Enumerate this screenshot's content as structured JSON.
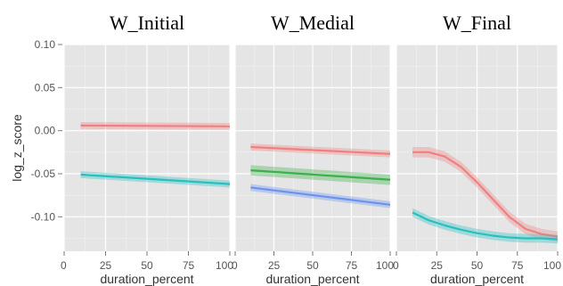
{
  "chart_data": {
    "type": "line",
    "ylabel": "log_z_score",
    "xlabel": "duration_percent",
    "xlim": [
      0,
      100
    ],
    "ylim": [
      -0.14,
      0.1
    ],
    "y_ticks": [
      {
        "value": 0.1,
        "label": "0.10"
      },
      {
        "value": 0.05,
        "label": "0.05"
      },
      {
        "value": 0.0,
        "label": "0.00"
      },
      {
        "value": -0.05,
        "label": "-0.05"
      },
      {
        "value": -0.1,
        "label": "-0.10"
      }
    ],
    "x_tick_labels": [
      [
        "0",
        "25",
        "50",
        "75",
        "100"
      ],
      [
        "0",
        "25",
        "50",
        "75",
        "100"
      ],
      [
        "0",
        "25",
        "50",
        "75",
        "100"
      ]
    ],
    "grid": true,
    "colors": {
      "red": "#f08080",
      "green": "#3cb04a",
      "blue": "#6a93f0",
      "teal": "#28bfc1",
      "panel_bg": "#e5e5e5",
      "grid": "#ffffff"
    },
    "panels": [
      {
        "title": "W_Initial",
        "series": [
          {
            "color": "red",
            "x": [
              10,
              100
            ],
            "y": [
              0.006,
              0.005
            ],
            "band": 0.004
          },
          {
            "color": "teal",
            "x": [
              10,
              100
            ],
            "y": [
              -0.051,
              -0.062
            ],
            "band": 0.004
          }
        ]
      },
      {
        "title": "W_Medial",
        "series": [
          {
            "color": "red",
            "x": [
              10,
              100
            ],
            "y": [
              -0.019,
              -0.027
            ],
            "band": 0.004
          },
          {
            "color": "green",
            "x": [
              10,
              100
            ],
            "y": [
              -0.046,
              -0.057
            ],
            "band": 0.006
          },
          {
            "color": "blue",
            "x": [
              10,
              100
            ],
            "y": [
              -0.066,
              -0.086
            ],
            "band": 0.004
          }
        ]
      },
      {
        "title": "W_Final",
        "series": [
          {
            "color": "red",
            "x": [
              10,
              20,
              30,
              40,
              50,
              60,
              70,
              80,
              90,
              100
            ],
            "y": [
              -0.025,
              -0.025,
              -0.03,
              -0.042,
              -0.06,
              -0.08,
              -0.1,
              -0.114,
              -0.12,
              -0.123
            ],
            "band": 0.006
          },
          {
            "color": "teal",
            "x": [
              10,
              20,
              30,
              40,
              50,
              60,
              70,
              80,
              90,
              100
            ],
            "y": [
              -0.095,
              -0.104,
              -0.11,
              -0.115,
              -0.119,
              -0.122,
              -0.124,
              -0.125,
              -0.125,
              -0.126
            ],
            "band": 0.005
          }
        ]
      }
    ]
  }
}
